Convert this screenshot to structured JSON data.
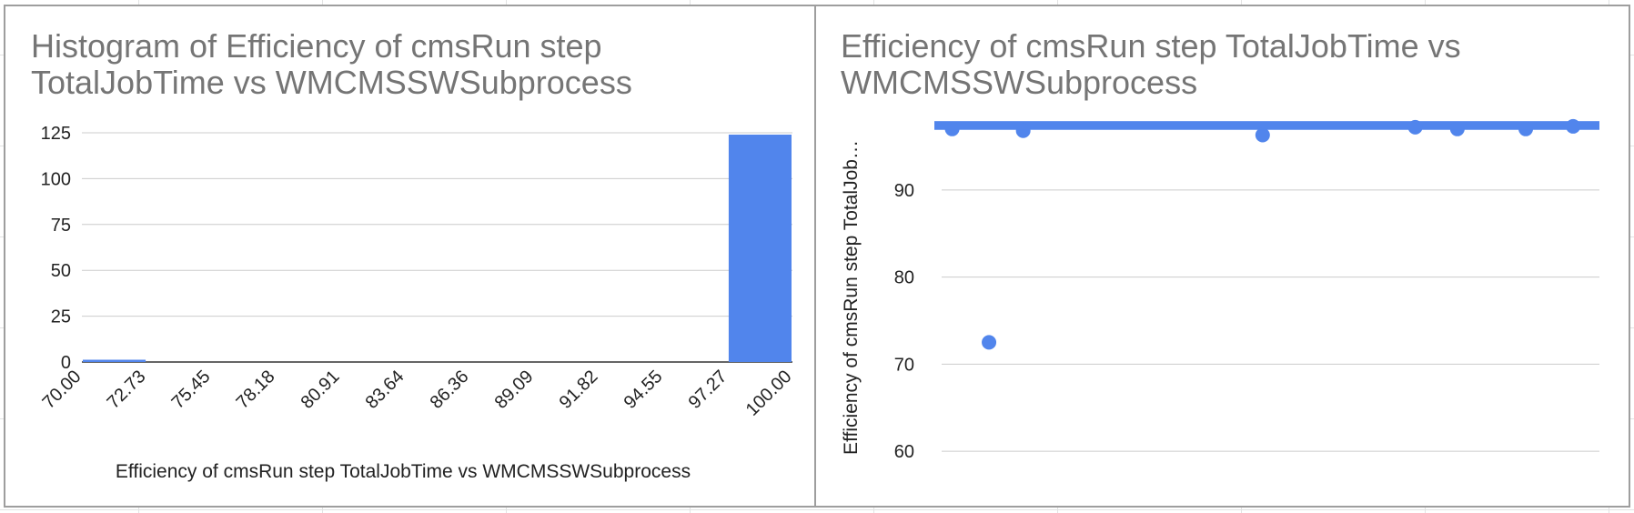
{
  "chart_data": [
    {
      "type": "bar",
      "title": "Histogram of Efficiency of cmsRun step TotalJobTime vs WMCMSSWSubprocess",
      "title_lines": [
        "Histogram of Efficiency of cmsRun step",
        "TotalJobTime vs WMCMSSWSubprocess"
      ],
      "xlabel": "Efficiency of cmsRun step TotalJobTime vs WMCMSSWSubprocess",
      "ylabel": "",
      "x_tick_labels": [
        "70.00",
        "72.73",
        "75.45",
        "78.18",
        "80.91",
        "83.64",
        "86.36",
        "89.09",
        "91.82",
        "94.55",
        "97.27",
        "100.00"
      ],
      "bins": [
        {
          "from": 70.0,
          "to": 72.73,
          "count": 1
        },
        {
          "from": 72.73,
          "to": 75.45,
          "count": 0
        },
        {
          "from": 75.45,
          "to": 78.18,
          "count": 0
        },
        {
          "from": 78.18,
          "to": 80.91,
          "count": 0
        },
        {
          "from": 80.91,
          "to": 83.64,
          "count": 0
        },
        {
          "from": 83.64,
          "to": 86.36,
          "count": 0
        },
        {
          "from": 86.36,
          "to": 89.09,
          "count": 0
        },
        {
          "from": 89.09,
          "to": 91.82,
          "count": 0
        },
        {
          "from": 91.82,
          "to": 94.55,
          "count": 0
        },
        {
          "from": 94.55,
          "to": 97.27,
          "count": 0
        },
        {
          "from": 97.27,
          "to": 100.0,
          "count": 124
        }
      ],
      "y_ticks": [
        0,
        25,
        50,
        75,
        100,
        125
      ],
      "ylim": [
        0,
        125
      ],
      "color": "#5185ec",
      "grid": true,
      "legend": "none"
    },
    {
      "type": "scatter",
      "title": "Efficiency of cmsRun step TotalJobTime vs WMCMSSWSubprocess",
      "title_lines": [
        "Efficiency of cmsRun step TotalJobTime vs",
        "WMCMSSWSubprocess"
      ],
      "xlabel": "",
      "ylabel": "Efficiency of cmsRun step TotalJob…",
      "y_ticks": [
        60,
        70,
        80,
        90
      ],
      "ylim": [
        57.5,
        97.5
      ],
      "xlim": [
        0,
        125
      ],
      "band": {
        "from": 96.9,
        "to": 97.9,
        "description": "dense cluster of points near 97"
      },
      "points": [
        {
          "x": 2,
          "y": 97.0
        },
        {
          "x": 9,
          "y": 72.5
        },
        {
          "x": 15.5,
          "y": 96.8
        },
        {
          "x": 61,
          "y": 96.3
        },
        {
          "x": 90,
          "y": 97.2
        },
        {
          "x": 98,
          "y": 97.0
        },
        {
          "x": 111,
          "y": 97.0
        },
        {
          "x": 120,
          "y": 97.3
        }
      ],
      "color": "#5185ec",
      "grid": true,
      "legend": "none"
    }
  ]
}
